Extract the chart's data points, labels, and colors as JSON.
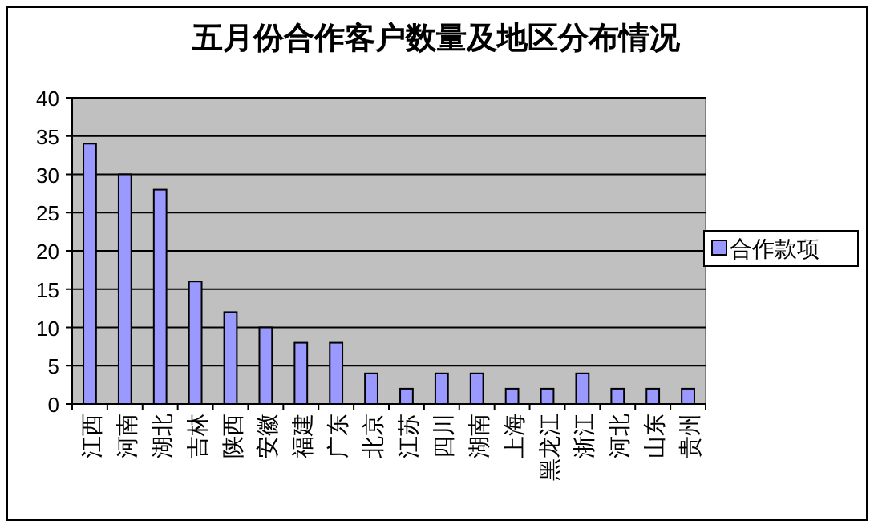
{
  "chart_data": {
    "type": "bar",
    "title": "五月份合作客户数量及地区分布情况",
    "categories": [
      "江西",
      "河南",
      "湖北",
      "吉林",
      "陕西",
      "安徽",
      "福建",
      "广东",
      "北京",
      "江苏",
      "四川",
      "湖南",
      "上海",
      "黑龙江",
      "浙江",
      "河北",
      "山东",
      "贵州"
    ],
    "series": [
      {
        "name": "合作款项",
        "color": "#9999ff",
        "values": [
          34,
          30,
          28,
          16,
          12,
          10,
          8,
          8,
          4,
          2,
          4,
          4,
          2,
          2,
          4,
          2,
          2,
          2
        ]
      }
    ],
    "ylim": [
      0,
      40
    ],
    "yticks": [
      0,
      5,
      10,
      15,
      20,
      25,
      30,
      35,
      40
    ],
    "grid": "y",
    "legend": "right"
  }
}
